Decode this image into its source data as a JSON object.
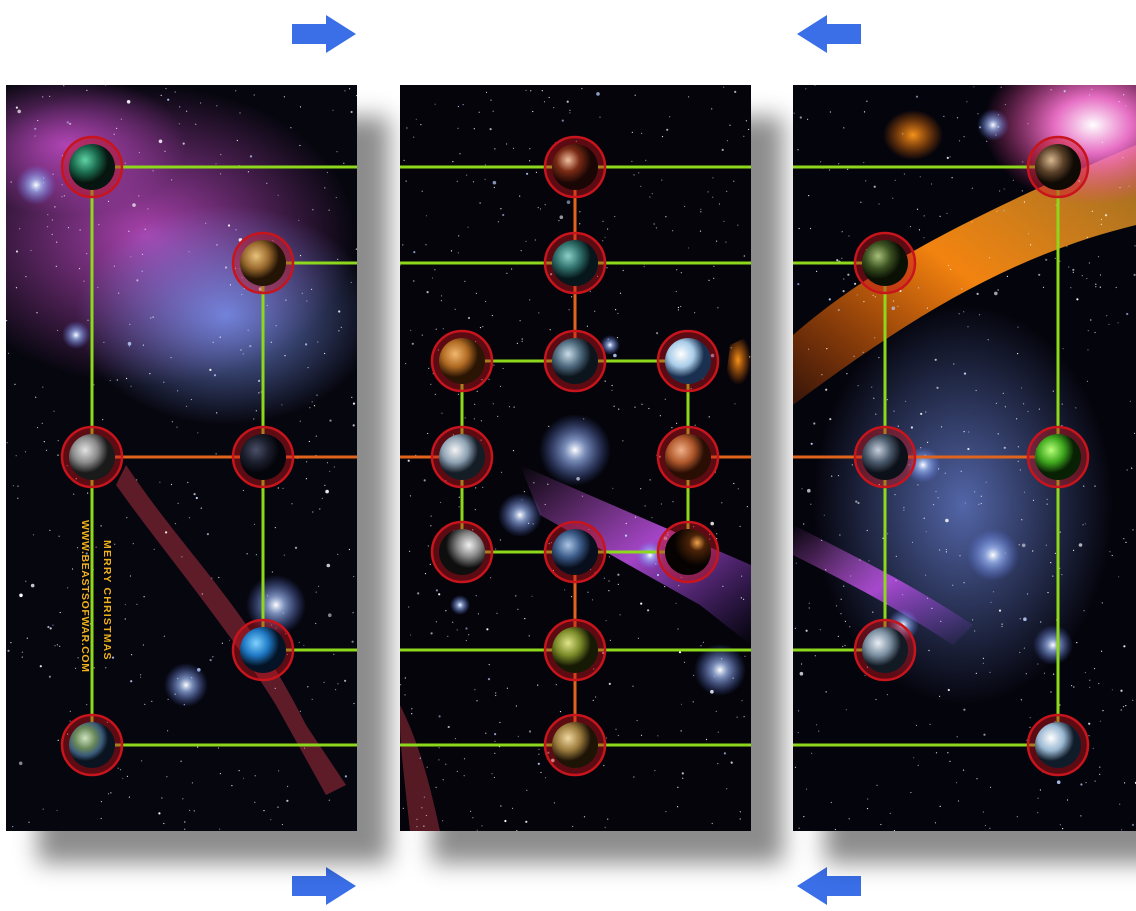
{
  "credits": {
    "line1": "MERRY CHRISTMAS",
    "line2": "WWW.BEASTSOFWAR.COM",
    "color": "#f2b21c"
  },
  "colors": {
    "link_green": "#8ed81c",
    "link_orange": "#e0641c",
    "ring_red": "#c8141c",
    "arrow_blue": "#3a6fe8"
  },
  "arrows": [
    {
      "name": "arrow-top-left",
      "direction": "right"
    },
    {
      "name": "arrow-top-right",
      "direction": "left"
    },
    {
      "name": "arrow-bottom-left",
      "direction": "right"
    },
    {
      "name": "arrow-bottom-right",
      "direction": "left"
    }
  ],
  "panels": [
    {
      "id": "left",
      "theme": "purple-blue nebula",
      "planets": [
        {
          "name": "emerald-planet",
          "type": "emerald"
        },
        {
          "name": "desert-planet",
          "type": "desert"
        },
        {
          "name": "grey-moon",
          "type": "grey-moon"
        },
        {
          "name": "dark-planet",
          "type": "dark"
        },
        {
          "name": "ocean-planet",
          "type": "ocean-blue"
        },
        {
          "name": "earth-like-planet",
          "type": "earth"
        }
      ]
    },
    {
      "id": "middle",
      "theme": "starfield with violet streak",
      "planets": [
        {
          "name": "banded-gas-planet",
          "type": "banded-red"
        },
        {
          "name": "teal-planet",
          "type": "teal"
        },
        {
          "name": "orange-rocky-planet",
          "type": "orange-rock"
        },
        {
          "name": "blue-grey-planet",
          "type": "blue-grey"
        },
        {
          "name": "ice-planet",
          "type": "ice"
        },
        {
          "name": "cloudy-planet",
          "type": "cloud-white"
        },
        {
          "name": "mars-like-planet",
          "type": "mars"
        },
        {
          "name": "cratered-moon",
          "type": "moon"
        },
        {
          "name": "steel-blue-planet",
          "type": "steel-blue"
        },
        {
          "name": "eclipsed-planet",
          "type": "eclipse"
        },
        {
          "name": "olive-planet",
          "type": "olive"
        },
        {
          "name": "sand-planet",
          "type": "sand"
        }
      ]
    },
    {
      "id": "right",
      "theme": "orange flare and blue star cluster",
      "planets": [
        {
          "name": "bronze-planet",
          "type": "bronze"
        },
        {
          "name": "forest-planet",
          "type": "forest"
        },
        {
          "name": "storm-planet",
          "type": "storm"
        },
        {
          "name": "toxic-green-planet",
          "type": "toxic-green"
        },
        {
          "name": "frozen-rock-planet",
          "type": "frozen-rock"
        },
        {
          "name": "pale-ice-planet",
          "type": "pale-ice"
        }
      ]
    }
  ]
}
